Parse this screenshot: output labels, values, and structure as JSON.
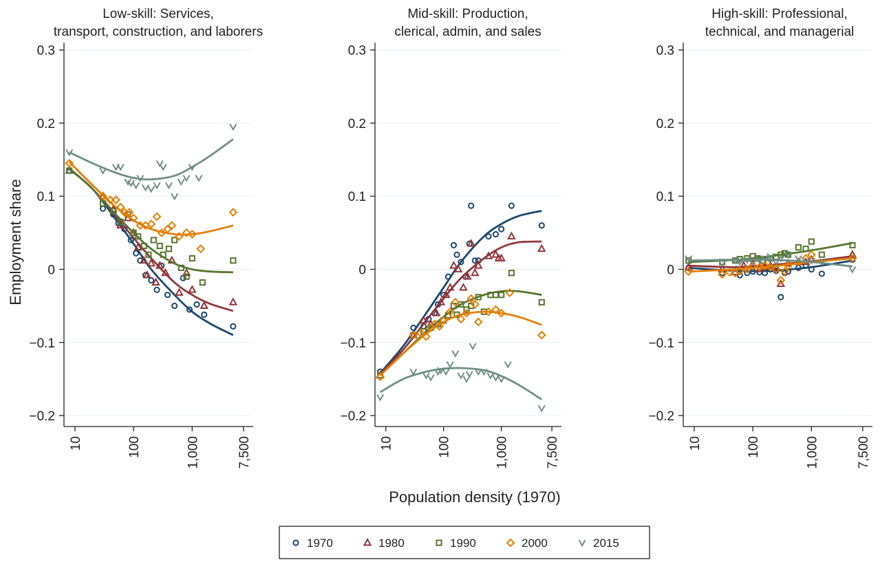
{
  "figure": {
    "ylabel": "Employment share",
    "xlabel": "Population density (1970)",
    "legend_position": "bottom",
    "y_ticks": [
      0.3,
      0.2,
      0.1,
      0,
      -0.1,
      -0.2
    ],
    "y_tick_labels": [
      "0.3",
      "0.2",
      "0.1",
      "0",
      "−0.1",
      "−0.2"
    ],
    "x_ticks": [
      10,
      100,
      1000,
      7500
    ],
    "x_tick_labels": [
      "10",
      "100",
      "1,000",
      "7,500"
    ],
    "x_scale": "log",
    "ylim": [
      -0.215,
      0.31
    ],
    "xlim": [
      6.5,
      11000
    ]
  },
  "legend": [
    {
      "name": "1970",
      "color": "#1a476f",
      "marker": "circle"
    },
    {
      "name": "1980",
      "color": "#90353b",
      "marker": "triangle"
    },
    {
      "name": "1990",
      "color": "#55752f",
      "marker": "square"
    },
    {
      "name": "2000",
      "color": "#e37e00",
      "marker": "diamond"
    },
    {
      "name": "2015",
      "color": "#6e8e84",
      "marker": "triangle-down"
    }
  ],
  "chart_data": [
    {
      "type": "scatter",
      "title_line1": "Low-skill: Services,",
      "title_line2": "transport, construction, and laborers",
      "series": [
        {
          "name": "1970",
          "x": [
            8,
            30,
            45,
            55,
            70,
            90,
            110,
            130,
            160,
            200,
            250,
            300,
            380,
            500,
            700,
            900,
            1200,
            1600,
            5000
          ],
          "y": [
            0.135,
            0.083,
            0.075,
            0.063,
            0.055,
            0.04,
            0.022,
            0.012,
            -0.008,
            -0.015,
            -0.028,
            0.005,
            -0.035,
            -0.05,
            -0.012,
            -0.055,
            -0.048,
            -0.062,
            -0.078
          ],
          "fit_x": [
            8,
            20,
            50,
            100,
            200,
            500,
            1000,
            2000,
            5000
          ],
          "fit_y": [
            0.137,
            0.11,
            0.068,
            0.035,
            0.0,
            -0.035,
            -0.058,
            -0.074,
            -0.09
          ]
        },
        {
          "name": "1980",
          "x": [
            8,
            30,
            45,
            60,
            80,
            100,
            120,
            150,
            170,
            200,
            240,
            280,
            350,
            450,
            600,
            800,
            1000,
            1600,
            5000
          ],
          "y": [
            0.135,
            0.1,
            0.082,
            0.06,
            0.07,
            0.05,
            0.03,
            0.012,
            -0.008,
            0.008,
            -0.018,
            0.005,
            -0.005,
            0.012,
            -0.032,
            -0.005,
            -0.028,
            -0.05,
            -0.045
          ],
          "fit_x": [
            8,
            20,
            50,
            100,
            200,
            500,
            1000,
            2000,
            5000
          ],
          "fit_y": [
            0.138,
            0.11,
            0.072,
            0.043,
            0.015,
            -0.018,
            -0.035,
            -0.047,
            -0.057
          ]
        },
        {
          "name": "1990",
          "x": [
            8,
            30,
            45,
            60,
            80,
            100,
            120,
            150,
            180,
            220,
            280,
            320,
            400,
            500,
            650,
            800,
            1000,
            1500,
            5000
          ],
          "y": [
            0.135,
            0.09,
            0.08,
            0.065,
            0.075,
            0.05,
            0.045,
            0.032,
            0.02,
            0.04,
            0.032,
            0.02,
            0.028,
            0.04,
            0.002,
            -0.01,
            0.015,
            -0.018,
            0.012
          ],
          "fit_x": [
            8,
            20,
            50,
            100,
            200,
            500,
            1000,
            2000,
            5000
          ],
          "fit_y": [
            0.138,
            0.11,
            0.075,
            0.05,
            0.028,
            0.008,
            0.0,
            -0.003,
            -0.004
          ]
        },
        {
          "name": "2000",
          "x": [
            8,
            30,
            40,
            50,
            60,
            70,
            85,
            100,
            130,
            160,
            200,
            250,
            300,
            380,
            450,
            600,
            800,
            1000,
            1400,
            5000
          ],
          "y": [
            0.145,
            0.1,
            0.095,
            0.095,
            0.085,
            0.078,
            0.078,
            0.07,
            0.06,
            0.06,
            0.062,
            0.072,
            0.05,
            0.055,
            0.06,
            0.045,
            0.05,
            0.048,
            0.028,
            0.078
          ],
          "fit_x": [
            8,
            20,
            50,
            100,
            200,
            500,
            1000,
            2000,
            5000
          ],
          "fit_y": [
            0.147,
            0.115,
            0.085,
            0.067,
            0.055,
            0.048,
            0.048,
            0.052,
            0.06
          ]
        },
        {
          "name": "2015",
          "x": [
            8,
            30,
            50,
            60,
            80,
            90,
            110,
            130,
            160,
            200,
            250,
            280,
            320,
            400,
            500,
            650,
            800,
            1000,
            1300,
            5000
          ],
          "y": [
            0.16,
            0.135,
            0.14,
            0.14,
            0.12,
            0.118,
            0.115,
            0.125,
            0.112,
            0.11,
            0.115,
            0.145,
            0.14,
            0.115,
            0.1,
            0.12,
            0.125,
            0.14,
            0.125,
            0.195
          ],
          "fit_x": [
            8,
            20,
            50,
            100,
            200,
            500,
            1000,
            2000,
            5000
          ],
          "fit_y": [
            0.16,
            0.145,
            0.132,
            0.125,
            0.123,
            0.128,
            0.14,
            0.155,
            0.178
          ]
        }
      ]
    },
    {
      "type": "scatter",
      "title_line1": "Mid-skill: Production,",
      "title_line2": "clerical, admin, and sales",
      "series": [
        {
          "name": "1970",
          "x": [
            8,
            30,
            45,
            55,
            70,
            80,
            100,
            120,
            150,
            170,
            200,
            240,
            280,
            300,
            350,
            400,
            600,
            800,
            1000,
            1500,
            5000
          ],
          "y": [
            -0.14,
            -0.08,
            -0.078,
            -0.068,
            -0.06,
            -0.048,
            -0.035,
            -0.01,
            0.033,
            0.02,
            0.01,
            -0.01,
            0.035,
            0.087,
            0.012,
            0.012,
            0.045,
            0.048,
            0.055,
            0.087,
            0.06
          ],
          "fit_x": [
            8,
            20,
            50,
            100,
            200,
            500,
            1000,
            2000,
            5000
          ],
          "fit_y": [
            -0.142,
            -0.105,
            -0.06,
            -0.025,
            0.01,
            0.045,
            0.062,
            0.073,
            0.08
          ]
        },
        {
          "name": "1980",
          "x": [
            8,
            30,
            45,
            60,
            75,
            90,
            110,
            130,
            150,
            180,
            220,
            260,
            300,
            350,
            400,
            600,
            800,
            900,
            1000,
            1500,
            5000
          ],
          "y": [
            -0.145,
            -0.09,
            -0.07,
            -0.075,
            -0.06,
            -0.045,
            -0.035,
            -0.025,
            0.005,
            0.0,
            -0.025,
            -0.01,
            0.035,
            -0.005,
            0.005,
            0.018,
            0.02,
            0.015,
            0.015,
            0.045,
            0.028
          ],
          "fit_x": [
            8,
            20,
            50,
            100,
            200,
            500,
            1000,
            2000,
            5000
          ],
          "fit_y": [
            -0.143,
            -0.11,
            -0.07,
            -0.04,
            -0.012,
            0.015,
            0.03,
            0.037,
            0.038
          ]
        },
        {
          "name": "1990",
          "x": [
            8,
            30,
            45,
            60,
            80,
            100,
            120,
            150,
            170,
            200,
            250,
            300,
            400,
            500,
            650,
            800,
            1000,
            1500,
            5000
          ],
          "y": [
            -0.145,
            -0.09,
            -0.085,
            -0.08,
            -0.075,
            -0.07,
            -0.063,
            -0.05,
            -0.062,
            -0.048,
            -0.055,
            -0.05,
            -0.038,
            -0.058,
            -0.035,
            -0.035,
            -0.035,
            -0.005,
            -0.045
          ],
          "fit_x": [
            8,
            20,
            50,
            100,
            200,
            500,
            1000,
            2000,
            5000
          ],
          "fit_y": [
            -0.145,
            -0.115,
            -0.085,
            -0.065,
            -0.048,
            -0.035,
            -0.03,
            -0.03,
            -0.035
          ]
        },
        {
          "name": "2000",
          "x": [
            8,
            30,
            40,
            50,
            60,
            70,
            85,
            100,
            130,
            160,
            200,
            250,
            300,
            350,
            400,
            600,
            800,
            1000,
            1400,
            5000
          ],
          "y": [
            -0.147,
            -0.09,
            -0.087,
            -0.092,
            -0.08,
            -0.075,
            -0.078,
            -0.07,
            -0.058,
            -0.045,
            -0.068,
            -0.06,
            -0.04,
            -0.048,
            -0.072,
            -0.058,
            -0.055,
            -0.06,
            -0.032,
            -0.09
          ],
          "fit_x": [
            8,
            20,
            50,
            100,
            200,
            500,
            1000,
            2000,
            5000
          ],
          "fit_y": [
            -0.145,
            -0.115,
            -0.088,
            -0.072,
            -0.062,
            -0.058,
            -0.06,
            -0.065,
            -0.076
          ]
        },
        {
          "name": "2015",
          "x": [
            8,
            30,
            50,
            60,
            80,
            90,
            110,
            130,
            160,
            200,
            250,
            280,
            320,
            400,
            500,
            650,
            800,
            1000,
            1300,
            5000
          ],
          "y": [
            -0.175,
            -0.14,
            -0.145,
            -0.148,
            -0.14,
            -0.138,
            -0.14,
            -0.13,
            -0.115,
            -0.145,
            -0.15,
            -0.143,
            -0.105,
            -0.14,
            -0.14,
            -0.145,
            -0.148,
            -0.15,
            -0.13,
            -0.19
          ],
          "fit_x": [
            8,
            20,
            50,
            100,
            200,
            500,
            1000,
            2000,
            5000
          ],
          "fit_y": [
            -0.168,
            -0.15,
            -0.14,
            -0.136,
            -0.135,
            -0.138,
            -0.146,
            -0.158,
            -0.178
          ]
        }
      ]
    },
    {
      "type": "scatter",
      "title_line1": "High-skill: Professional,",
      "title_line2": "technical, and managerial",
      "series": [
        {
          "name": "1970",
          "x": [
            8,
            30,
            50,
            60,
            80,
            100,
            130,
            160,
            200,
            250,
            300,
            350,
            400,
            600,
            800,
            1000,
            1500,
            5000
          ],
          "y": [
            0.002,
            -0.005,
            -0.005,
            -0.008,
            -0.005,
            -0.003,
            -0.004,
            -0.005,
            0.0,
            -0.002,
            -0.038,
            -0.005,
            -0.003,
            0.002,
            0.005,
            0.0,
            -0.006,
            0.013
          ],
          "fit_x": [
            8,
            50,
            200,
            1000,
            5000
          ],
          "fit_y": [
            0.002,
            -0.002,
            -0.002,
            0.003,
            0.012
          ]
        },
        {
          "name": "1980",
          "x": [
            8,
            30,
            50,
            70,
            100,
            130,
            160,
            200,
            250,
            300,
            400,
            600,
            800,
            1000,
            5000
          ],
          "y": [
            0.003,
            0.0,
            -0.004,
            0.005,
            0.008,
            0.0,
            0.003,
            0.005,
            0.003,
            -0.02,
            0.008,
            0.01,
            0.01,
            0.013,
            0.02
          ],
          "fit_x": [
            8,
            50,
            200,
            1000,
            5000
          ],
          "fit_y": [
            0.005,
            0.003,
            0.006,
            0.011,
            0.018
          ]
        },
        {
          "name": "1990",
          "x": [
            8,
            30,
            50,
            60,
            80,
            100,
            120,
            150,
            200,
            250,
            300,
            350,
            400,
            600,
            800,
            1000,
            1500,
            5000
          ],
          "y": [
            0.012,
            0.01,
            0.012,
            0.014,
            0.015,
            0.018,
            0.015,
            0.012,
            0.015,
            0.017,
            0.02,
            0.022,
            0.02,
            0.03,
            0.028,
            0.038,
            0.02,
            0.033
          ],
          "fit_x": [
            8,
            50,
            200,
            1000,
            5000
          ],
          "fit_y": [
            0.01,
            0.013,
            0.018,
            0.026,
            0.036
          ]
        },
        {
          "name": "2000",
          "x": [
            8,
            30,
            40,
            50,
            60,
            80,
            100,
            130,
            160,
            200,
            250,
            300,
            350,
            400,
            600,
            800,
            1000,
            5000
          ],
          "y": [
            -0.003,
            -0.007,
            -0.004,
            -0.005,
            -0.002,
            0.0,
            0.005,
            0.003,
            0.005,
            0.003,
            0.0,
            -0.015,
            -0.003,
            0.005,
            0.01,
            0.015,
            0.02,
            0.015
          ],
          "fit_x": [
            8,
            50,
            200,
            1000,
            5000
          ],
          "fit_y": [
            -0.003,
            0.0,
            0.004,
            0.01,
            0.015
          ]
        },
        {
          "name": "2015",
          "x": [
            8,
            30,
            50,
            60,
            80,
            100,
            130,
            160,
            200,
            250,
            300,
            400,
            600,
            800,
            1000,
            1500,
            5000
          ],
          "y": [
            0.015,
            0.008,
            0.012,
            0.01,
            0.013,
            0.01,
            0.012,
            0.015,
            0.018,
            0.01,
            0.015,
            0.02,
            0.015,
            0.012,
            0.012,
            0.01,
            0.0
          ],
          "fit_x": [
            8,
            50,
            200,
            1000,
            5000
          ],
          "fit_y": [
            0.012,
            0.013,
            0.013,
            0.01,
            0.004
          ]
        }
      ]
    }
  ]
}
